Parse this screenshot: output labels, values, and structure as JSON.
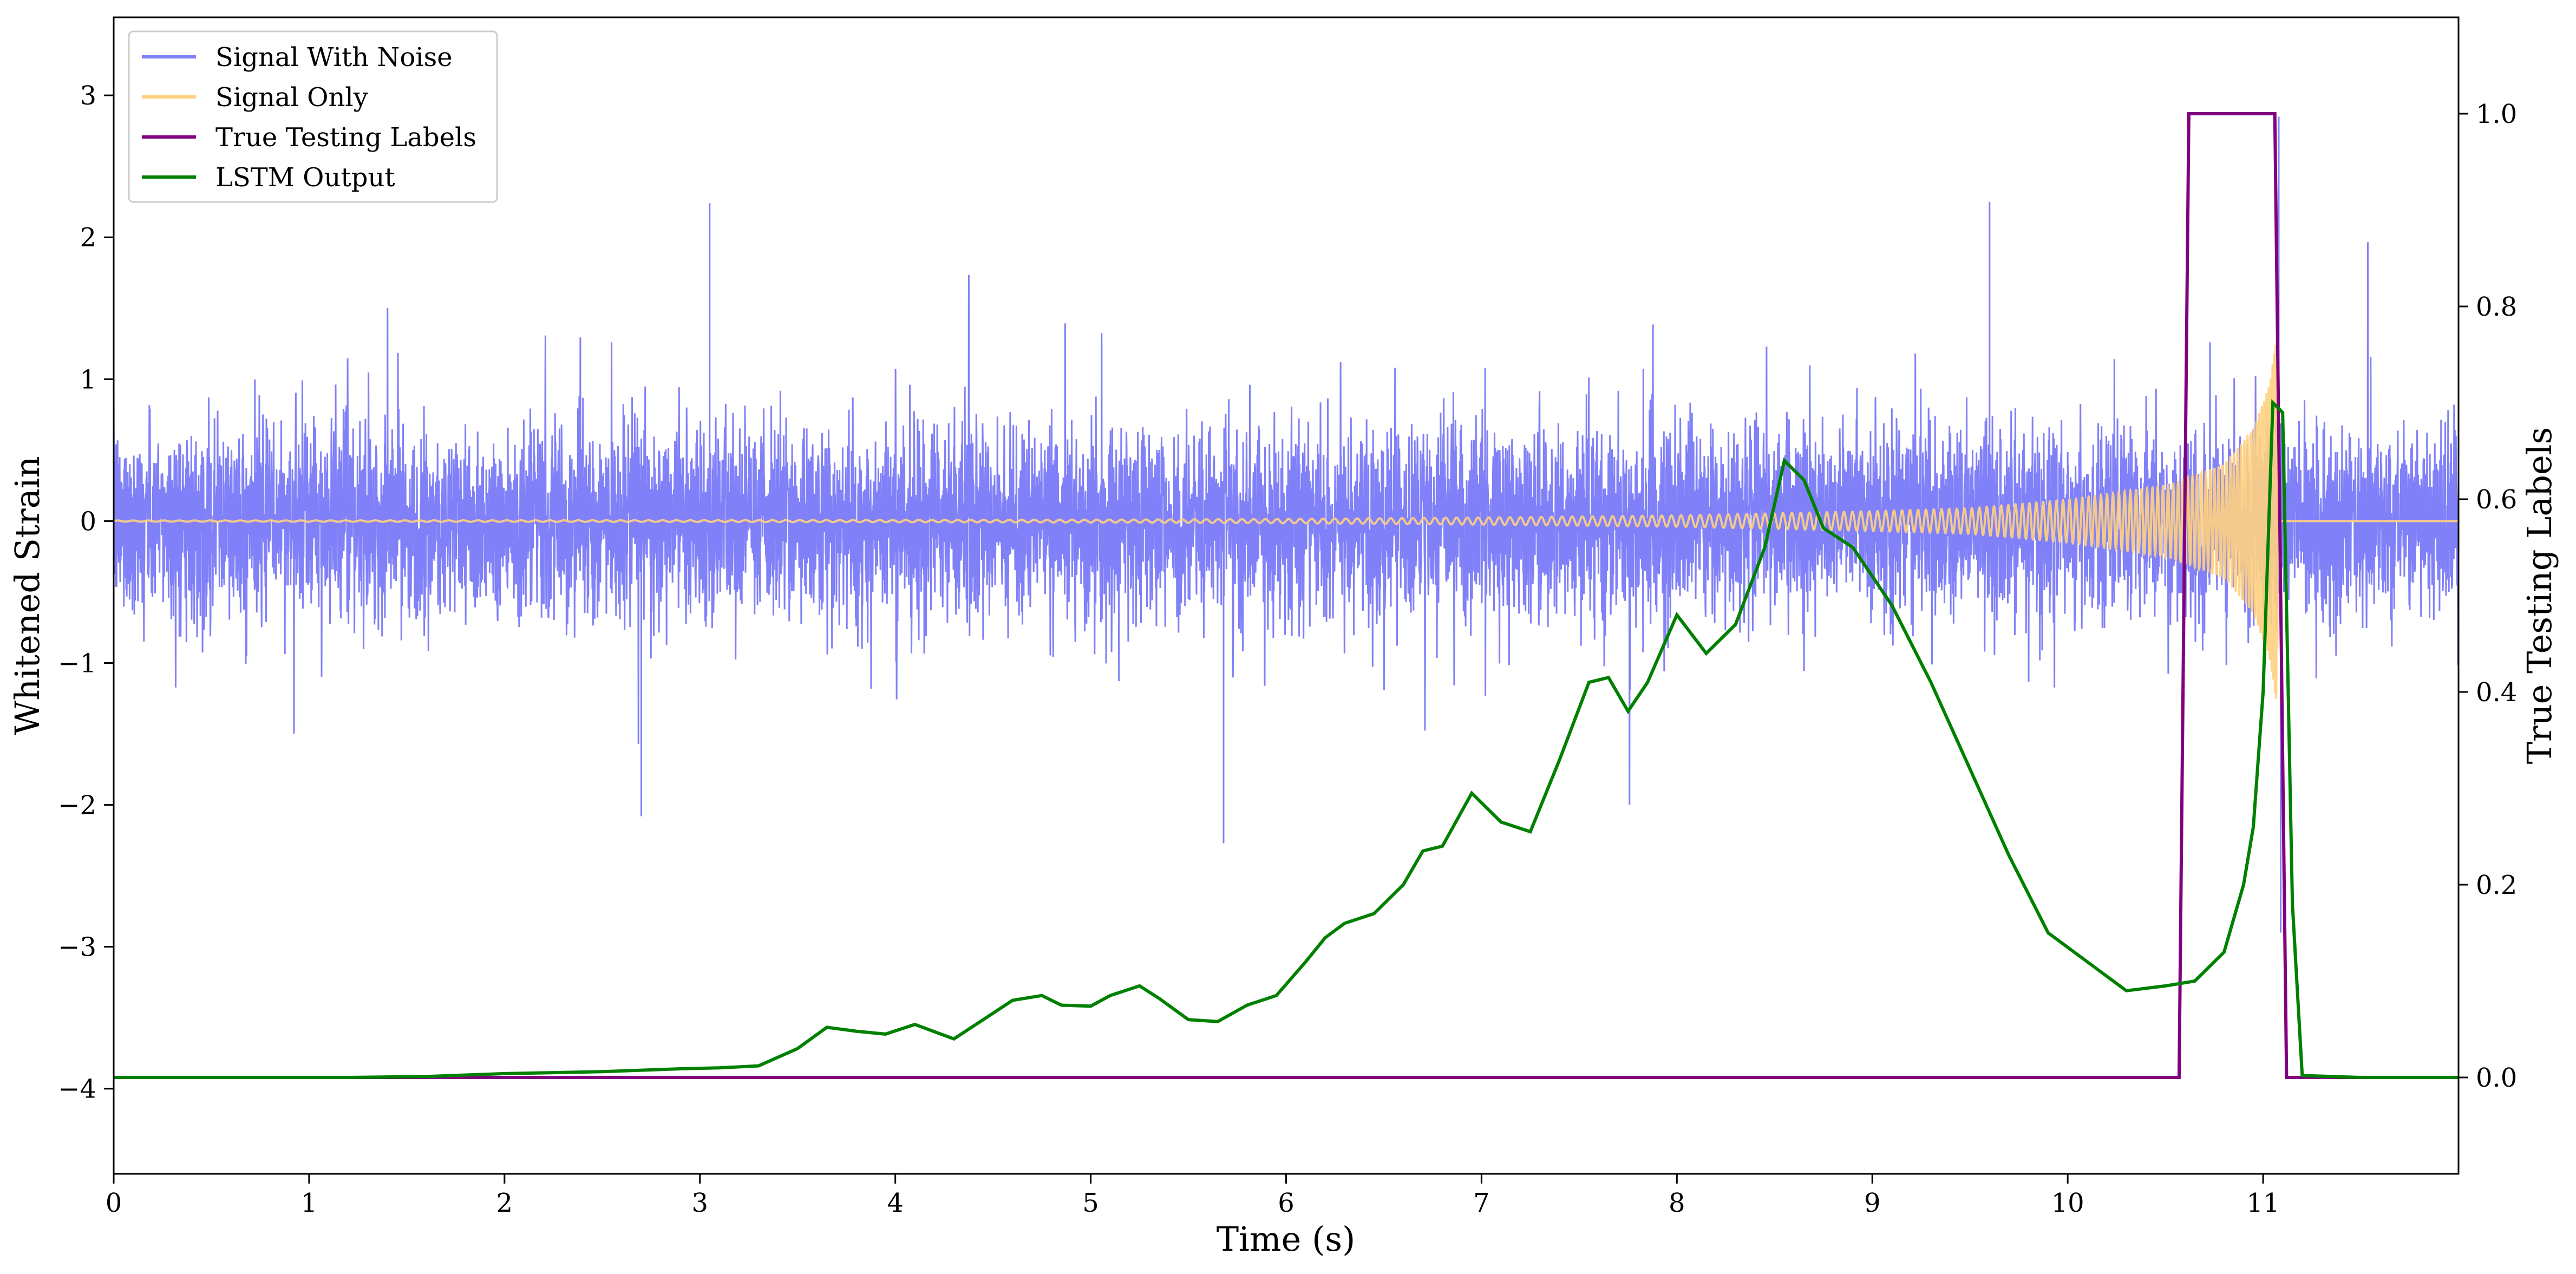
{
  "chart_data": {
    "type": "line",
    "xlabel": "Time (s)",
    "ylabel": "Whitened Strain",
    "y2label": "True Testing Labels",
    "xlim": [
      0,
      12
    ],
    "ylim": [
      -4.6,
      3.55
    ],
    "y2lim": [
      -0.1,
      1.1
    ],
    "xticks": [
      0,
      1,
      2,
      3,
      4,
      5,
      6,
      7,
      8,
      9,
      10,
      11
    ],
    "yticks": [
      -4,
      -3,
      -2,
      -1,
      0,
      1,
      2,
      3
    ],
    "y2ticks": [
      0.0,
      0.2,
      0.4,
      0.6,
      0.8,
      1.0
    ],
    "xtick_labels": [
      "0",
      "1",
      "2",
      "3",
      "4",
      "5",
      "6",
      "7",
      "8",
      "9",
      "10",
      "11"
    ],
    "ytick_labels": [
      "−4",
      "−3",
      "−2",
      "−1",
      "0",
      "1",
      "2",
      "3"
    ],
    "y2tick_labels": [
      "0.0",
      "0.2",
      "0.4",
      "0.6",
      "0.8",
      "1.0"
    ],
    "grid": false,
    "legend_position": "top-left",
    "legend": [
      "Signal With Noise",
      "Signal Only",
      "True Testing Labels",
      "LSTM Output"
    ],
    "series": [
      {
        "name": "Signal With Noise",
        "axis": "left",
        "color": "#8080f8",
        "amplitude_typical": 0.55,
        "amplitude_peaks": 2.0,
        "x_start": 0,
        "x_end": 12,
        "notable_points": [
          {
            "x": 11.08,
            "y": 2.85
          },
          {
            "x": 11.09,
            "y": -2.9
          },
          {
            "x": 5.68,
            "y": -2.27
          },
          {
            "x": 2.7,
            "y": -2.08
          },
          {
            "x": 3.05,
            "y": 2.24
          },
          {
            "x": 9.6,
            "y": 2.25
          }
        ]
      },
      {
        "name": "Signal Only",
        "axis": "left",
        "color": "#ffd080",
        "chirp_end": 11.08,
        "envelope": [
          [
            0,
            0.004
          ],
          [
            3,
            0.006
          ],
          [
            5,
            0.01
          ],
          [
            6,
            0.015
          ],
          [
            7,
            0.025
          ],
          [
            8,
            0.04
          ],
          [
            9,
            0.07
          ],
          [
            9.5,
            0.09
          ],
          [
            10,
            0.15
          ],
          [
            10.5,
            0.25
          ],
          [
            10.8,
            0.4
          ],
          [
            10.95,
            0.65
          ],
          [
            11.03,
            0.95
          ],
          [
            11.07,
            1.3
          ],
          [
            11.08,
            0
          ]
        ]
      },
      {
        "name": "True Testing Labels",
        "axis": "right",
        "color": "#800080",
        "x": [
          0,
          10.57,
          10.62,
          11.06,
          11.12,
          12
        ],
        "values": [
          0,
          0,
          1,
          1,
          0,
          0
        ]
      },
      {
        "name": "LSTM Output",
        "axis": "right",
        "color": "#008000",
        "x": [
          0,
          1.2,
          1.6,
          2.0,
          2.5,
          2.9,
          3.1,
          3.3,
          3.5,
          3.65,
          3.8,
          3.95,
          4.1,
          4.3,
          4.45,
          4.6,
          4.75,
          4.85,
          5.0,
          5.1,
          5.25,
          5.35,
          5.5,
          5.65,
          5.8,
          5.95,
          6.1,
          6.2,
          6.3,
          6.45,
          6.6,
          6.7,
          6.8,
          6.95,
          7.1,
          7.25,
          7.4,
          7.55,
          7.65,
          7.75,
          7.85,
          8.0,
          8.15,
          8.3,
          8.45,
          8.55,
          8.65,
          8.75,
          8.9,
          9.1,
          9.3,
          9.5,
          9.7,
          9.9,
          10.1,
          10.3,
          10.5,
          10.65,
          10.8,
          10.9,
          10.95,
          11.0,
          11.05,
          11.1,
          11.15,
          11.2,
          11.5,
          12.0
        ],
        "values": [
          0.0,
          0.0,
          0.001,
          0.004,
          0.006,
          0.009,
          0.01,
          0.012,
          0.03,
          0.052,
          0.048,
          0.045,
          0.055,
          0.04,
          0.06,
          0.08,
          0.085,
          0.075,
          0.074,
          0.085,
          0.095,
          0.082,
          0.06,
          0.058,
          0.075,
          0.085,
          0.12,
          0.145,
          0.16,
          0.17,
          0.2,
          0.235,
          0.24,
          0.295,
          0.265,
          0.255,
          0.33,
          0.41,
          0.415,
          0.38,
          0.41,
          0.48,
          0.44,
          0.47,
          0.55,
          0.64,
          0.62,
          0.57,
          0.55,
          0.49,
          0.41,
          0.32,
          0.23,
          0.15,
          0.12,
          0.09,
          0.095,
          0.1,
          0.13,
          0.2,
          0.26,
          0.4,
          0.7,
          0.69,
          0.18,
          0.002,
          0.0,
          0.0
        ]
      }
    ]
  }
}
